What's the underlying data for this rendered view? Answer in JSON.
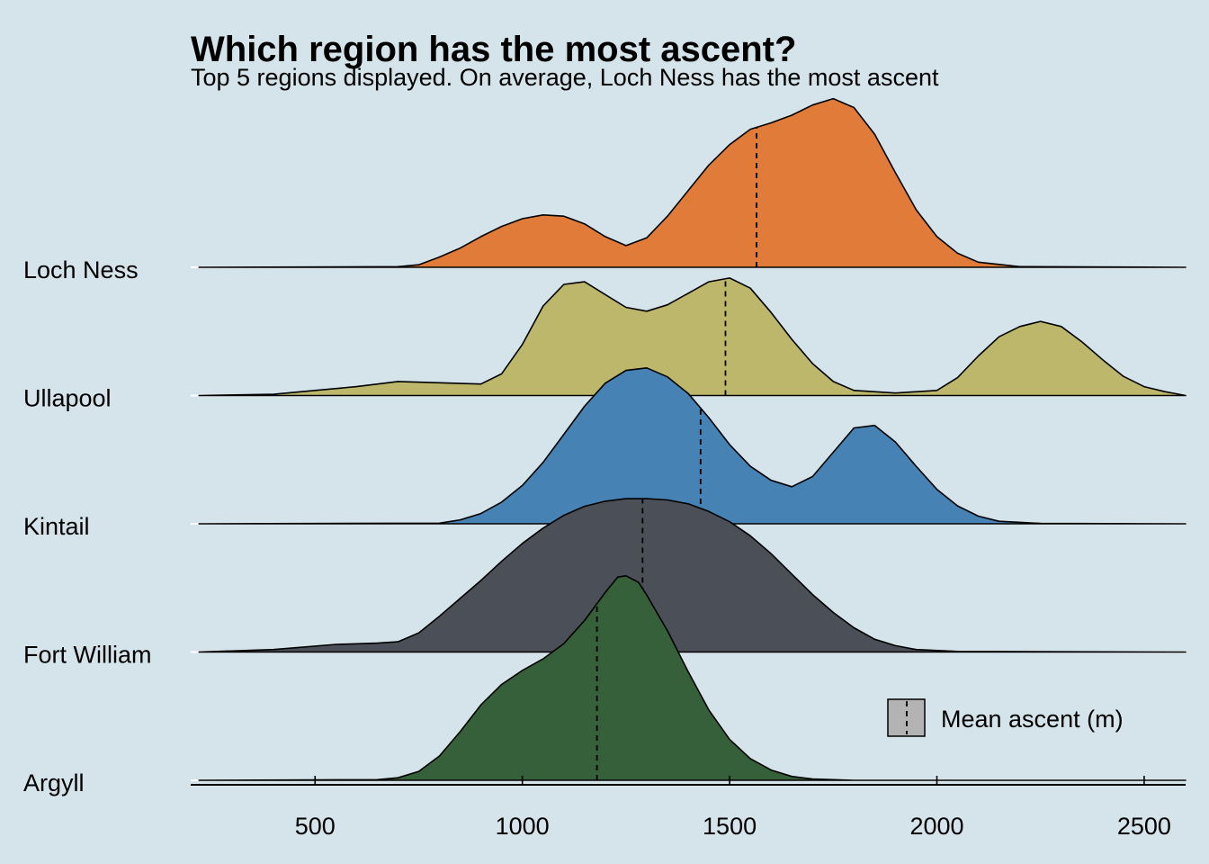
{
  "chart_data": {
    "type": "ridgeline",
    "title": "Which region has the most ascent?",
    "subtitle": "Top 5 regions displayed. On average, Loch Ness has the most ascent",
    "xlim": [
      200,
      2600
    ],
    "xticks": [
      500,
      1000,
      1500,
      2000,
      2500
    ],
    "grid": true,
    "legend": {
      "label": "Mean ascent (m)",
      "placement": "bottom-right"
    },
    "series": [
      {
        "name": "Loch Ness",
        "color": "#e07b39",
        "mean": 1565,
        "density": [
          [
            220,
            0
          ],
          [
            700,
            0.005
          ],
          [
            750,
            0.02
          ],
          [
            800,
            0.08
          ],
          [
            850,
            0.15
          ],
          [
            900,
            0.24
          ],
          [
            950,
            0.32
          ],
          [
            1000,
            0.38
          ],
          [
            1050,
            0.41
          ],
          [
            1100,
            0.4
          ],
          [
            1150,
            0.34
          ],
          [
            1200,
            0.24
          ],
          [
            1250,
            0.17
          ],
          [
            1300,
            0.23
          ],
          [
            1350,
            0.4
          ],
          [
            1400,
            0.6
          ],
          [
            1450,
            0.8
          ],
          [
            1500,
            0.96
          ],
          [
            1550,
            1.08
          ],
          [
            1600,
            1.13
          ],
          [
            1650,
            1.19
          ],
          [
            1700,
            1.27
          ],
          [
            1750,
            1.32
          ],
          [
            1800,
            1.25
          ],
          [
            1850,
            1.04
          ],
          [
            1900,
            0.74
          ],
          [
            1950,
            0.45
          ],
          [
            2000,
            0.24
          ],
          [
            2050,
            0.11
          ],
          [
            2100,
            0.04
          ],
          [
            2200,
            0.005
          ],
          [
            2600,
            0
          ]
        ]
      },
      {
        "name": "Ullapool",
        "color": "#bdb76b",
        "mean": 1490,
        "density": [
          [
            220,
            0
          ],
          [
            400,
            0.01
          ],
          [
            500,
            0.04
          ],
          [
            600,
            0.07
          ],
          [
            700,
            0.11
          ],
          [
            800,
            0.1
          ],
          [
            900,
            0.09
          ],
          [
            950,
            0.17
          ],
          [
            1000,
            0.4
          ],
          [
            1050,
            0.7
          ],
          [
            1100,
            0.87
          ],
          [
            1150,
            0.89
          ],
          [
            1200,
            0.79
          ],
          [
            1250,
            0.69
          ],
          [
            1300,
            0.66
          ],
          [
            1350,
            0.71
          ],
          [
            1400,
            0.8
          ],
          [
            1450,
            0.89
          ],
          [
            1500,
            0.92
          ],
          [
            1550,
            0.84
          ],
          [
            1600,
            0.65
          ],
          [
            1650,
            0.44
          ],
          [
            1700,
            0.25
          ],
          [
            1750,
            0.11
          ],
          [
            1800,
            0.04
          ],
          [
            1900,
            0.02
          ],
          [
            2000,
            0.04
          ],
          [
            2050,
            0.14
          ],
          [
            2100,
            0.31
          ],
          [
            2150,
            0.46
          ],
          [
            2200,
            0.54
          ],
          [
            2250,
            0.58
          ],
          [
            2300,
            0.54
          ],
          [
            2350,
            0.42
          ],
          [
            2400,
            0.28
          ],
          [
            2450,
            0.15
          ],
          [
            2500,
            0.07
          ],
          [
            2550,
            0.03
          ],
          [
            2600,
            0
          ]
        ]
      },
      {
        "name": "Kintail",
        "color": "#4682b4",
        "mean": 1430,
        "density": [
          [
            220,
            0
          ],
          [
            800,
            0.005
          ],
          [
            850,
            0.03
          ],
          [
            900,
            0.08
          ],
          [
            950,
            0.17
          ],
          [
            1000,
            0.3
          ],
          [
            1050,
            0.48
          ],
          [
            1100,
            0.7
          ],
          [
            1150,
            0.92
          ],
          [
            1200,
            1.1
          ],
          [
            1250,
            1.2
          ],
          [
            1300,
            1.22
          ],
          [
            1350,
            1.15
          ],
          [
            1400,
            1.02
          ],
          [
            1450,
            0.83
          ],
          [
            1500,
            0.62
          ],
          [
            1550,
            0.45
          ],
          [
            1600,
            0.34
          ],
          [
            1650,
            0.29
          ],
          [
            1700,
            0.37
          ],
          [
            1750,
            0.56
          ],
          [
            1800,
            0.75
          ],
          [
            1850,
            0.77
          ],
          [
            1900,
            0.64
          ],
          [
            1950,
            0.45
          ],
          [
            2000,
            0.27
          ],
          [
            2050,
            0.14
          ],
          [
            2100,
            0.06
          ],
          [
            2150,
            0.02
          ],
          [
            2250,
            0.003
          ],
          [
            2600,
            0
          ]
        ]
      },
      {
        "name": "Fort William",
        "color": "#4a4f58",
        "mean": 1290,
        "density": [
          [
            220,
            0
          ],
          [
            400,
            0.02
          ],
          [
            550,
            0.06
          ],
          [
            650,
            0.07
          ],
          [
            700,
            0.08
          ],
          [
            750,
            0.15
          ],
          [
            800,
            0.28
          ],
          [
            850,
            0.42
          ],
          [
            900,
            0.56
          ],
          [
            950,
            0.71
          ],
          [
            1000,
            0.85
          ],
          [
            1050,
            0.97
          ],
          [
            1100,
            1.07
          ],
          [
            1150,
            1.14
          ],
          [
            1200,
            1.18
          ],
          [
            1250,
            1.2
          ],
          [
            1300,
            1.2
          ],
          [
            1350,
            1.19
          ],
          [
            1400,
            1.16
          ],
          [
            1450,
            1.1
          ],
          [
            1500,
            1.02
          ],
          [
            1550,
            0.91
          ],
          [
            1600,
            0.77
          ],
          [
            1650,
            0.61
          ],
          [
            1700,
            0.45
          ],
          [
            1750,
            0.31
          ],
          [
            1800,
            0.19
          ],
          [
            1850,
            0.1
          ],
          [
            1900,
            0.05
          ],
          [
            1950,
            0.02
          ],
          [
            2050,
            0.005
          ],
          [
            2600,
            0
          ]
        ]
      },
      {
        "name": "Argyll",
        "color": "#36603a",
        "mean": 1180,
        "density": [
          [
            220,
            0
          ],
          [
            650,
            0.005
          ],
          [
            700,
            0.02
          ],
          [
            750,
            0.07
          ],
          [
            800,
            0.19
          ],
          [
            850,
            0.38
          ],
          [
            900,
            0.59
          ],
          [
            950,
            0.75
          ],
          [
            1000,
            0.86
          ],
          [
            1050,
            0.95
          ],
          [
            1100,
            1.07
          ],
          [
            1150,
            1.25
          ],
          [
            1200,
            1.47
          ],
          [
            1230,
            1.59
          ],
          [
            1250,
            1.6
          ],
          [
            1280,
            1.55
          ],
          [
            1300,
            1.45
          ],
          [
            1350,
            1.17
          ],
          [
            1400,
            0.85
          ],
          [
            1450,
            0.55
          ],
          [
            1500,
            0.32
          ],
          [
            1550,
            0.17
          ],
          [
            1600,
            0.08
          ],
          [
            1650,
            0.03
          ],
          [
            1700,
            0.01
          ],
          [
            1800,
            0
          ],
          [
            2600,
            0
          ]
        ]
      }
    ]
  }
}
